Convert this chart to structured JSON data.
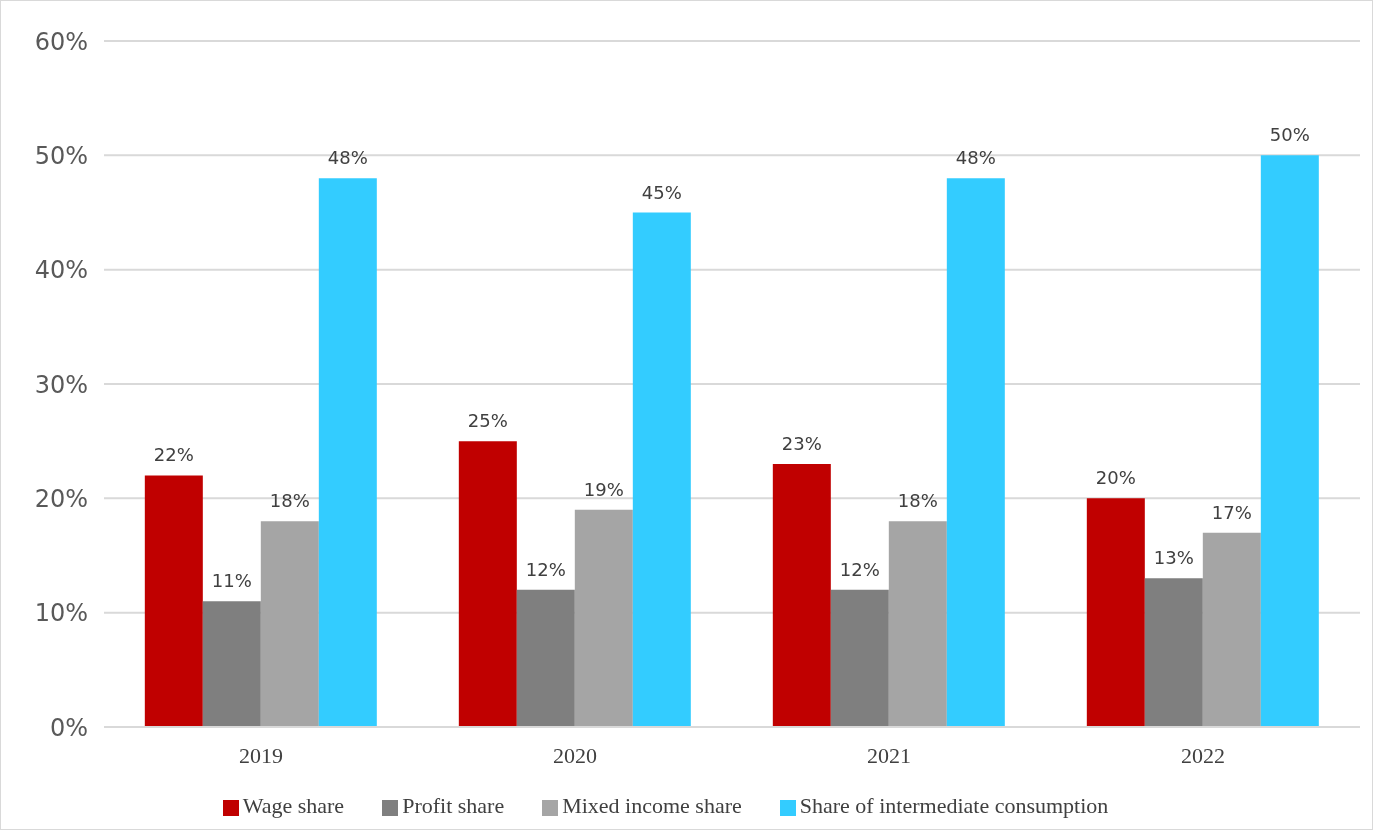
{
  "chart_data": {
    "type": "bar",
    "categories": [
      "2019",
      "2020",
      "2021",
      "2022"
    ],
    "series": [
      {
        "name": "Wage share",
        "color": "#c00000",
        "values": [
          22,
          25,
          23,
          20
        ],
        "value_labels": [
          "22%",
          "25%",
          "23%",
          "20%"
        ]
      },
      {
        "name": "Profit share",
        "color": "#7f7f7f",
        "values": [
          11,
          12,
          12,
          13
        ],
        "value_labels": [
          "11%",
          "12%",
          "12%",
          "13%"
        ]
      },
      {
        "name": "Mixed income share",
        "color": "#a5a5a5",
        "values": [
          18,
          19,
          18,
          17
        ],
        "value_labels": [
          "18%",
          "19%",
          "18%",
          "17%"
        ]
      },
      {
        "name": "Share of intermediate consumption",
        "color": "#33ccff",
        "values": [
          48,
          45,
          48,
          50
        ],
        "value_labels": [
          "48%",
          "45%",
          "48%",
          "50%"
        ]
      }
    ],
    "ylim": [
      0,
      60
    ],
    "yticks": [
      {
        "value": 0,
        "label": "0%"
      },
      {
        "value": 10,
        "label": "10%"
      },
      {
        "value": 20,
        "label": "20%"
      },
      {
        "value": 30,
        "label": "30%"
      },
      {
        "value": 40,
        "label": "40%"
      },
      {
        "value": 50,
        "label": "50%"
      },
      {
        "value": 60,
        "label": "60%"
      }
    ],
    "grid": "y",
    "legend": "bottom"
  }
}
